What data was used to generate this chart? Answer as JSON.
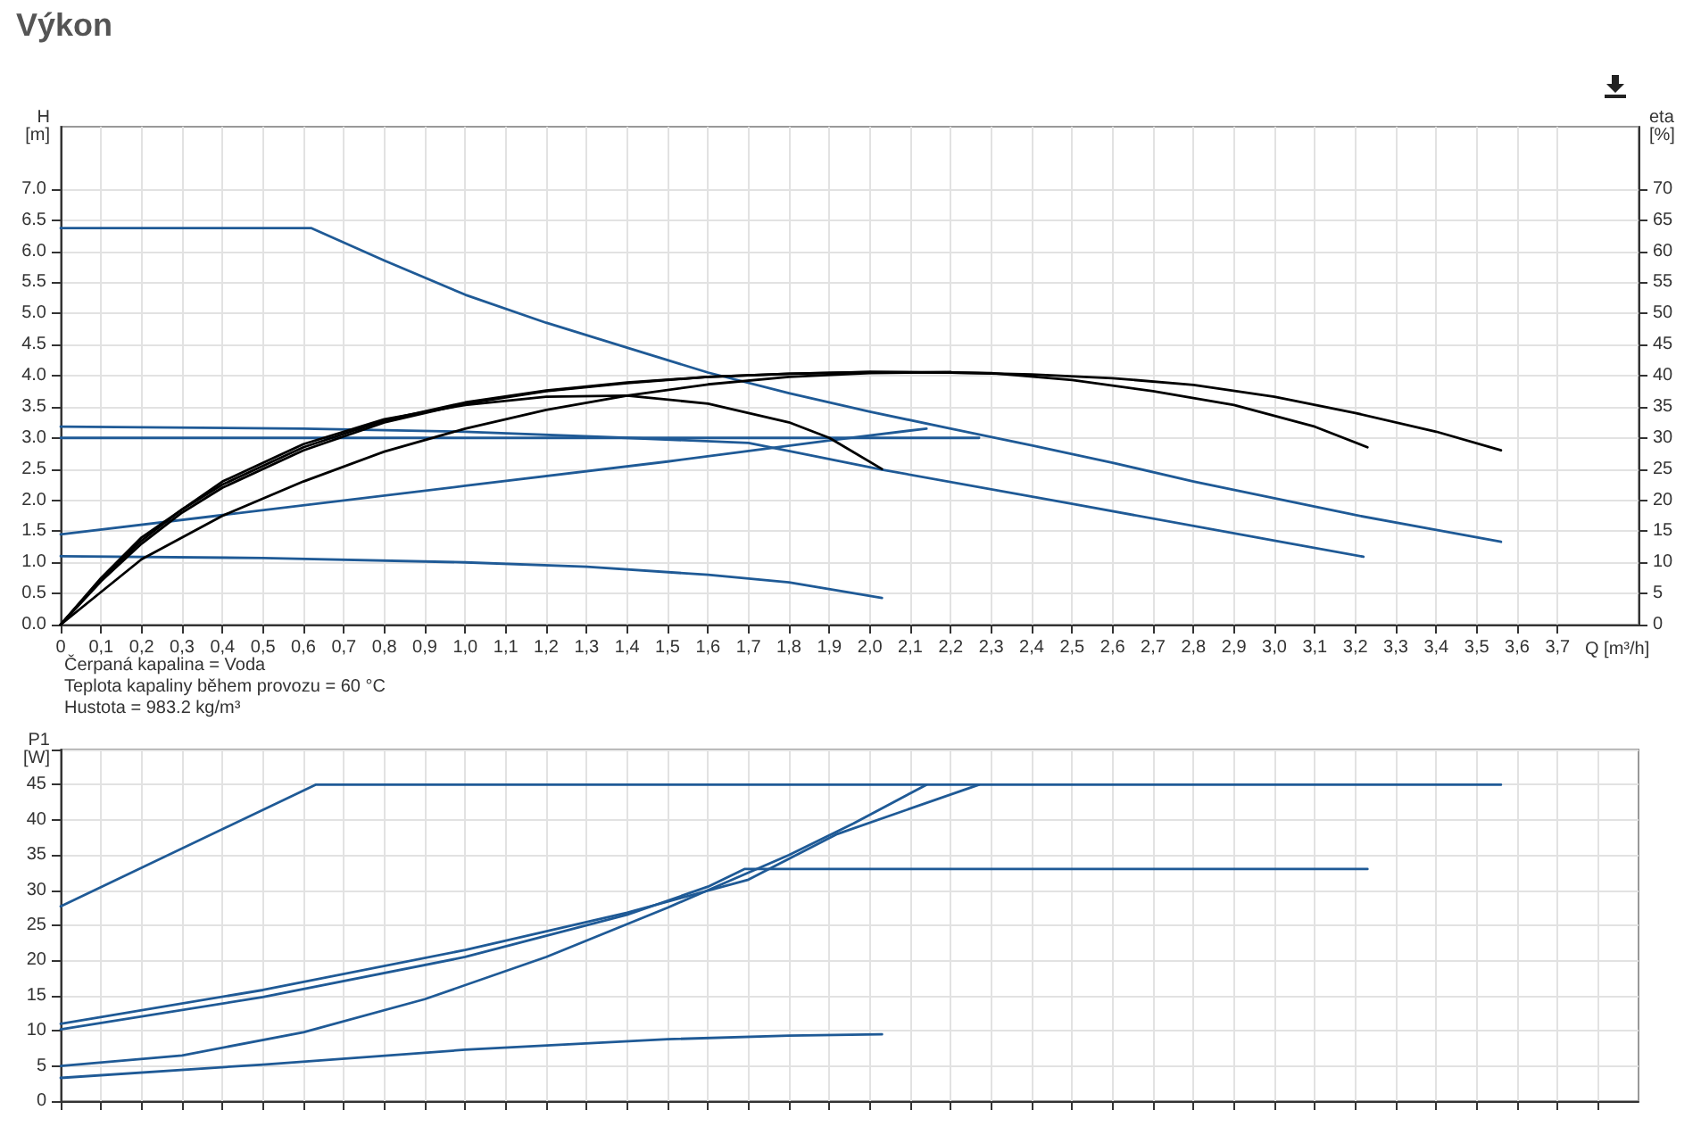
{
  "chart_data": [
    {
      "type": "line",
      "title": "Výkon",
      "xlabel": "Q [m³/h]",
      "ylabel": "H\n[m]",
      "y2label": "eta\n[%]",
      "grid": true,
      "xlim": [
        0,
        3.9
      ],
      "xticks": [
        0,
        {
          "value": 0.1,
          "label": "0,1"
        },
        {
          "value": 0.2,
          "label": "0,2"
        },
        {
          "value": 0.3,
          "label": "0,3"
        },
        {
          "value": 0.4,
          "label": "0,4"
        },
        {
          "value": 0.5,
          "label": "0,5"
        },
        {
          "value": 0.6,
          "label": "0,6"
        },
        {
          "value": 0.7,
          "label": "0,7"
        },
        {
          "value": 0.8,
          "label": "0,8"
        },
        {
          "value": 0.9,
          "label": "0,9"
        },
        {
          "value": 1.0,
          "label": "1,0"
        },
        {
          "value": 1.1,
          "label": "1,1"
        },
        {
          "value": 1.2,
          "label": "1,2"
        },
        {
          "value": 1.3,
          "label": "1,3"
        },
        {
          "value": 1.4,
          "label": "1,4"
        },
        {
          "value": 1.5,
          "label": "1,5"
        },
        {
          "value": 1.6,
          "label": "1,6"
        },
        {
          "value": 1.7,
          "label": "1,7"
        },
        {
          "value": 1.8,
          "label": "1,8"
        },
        {
          "value": 1.9,
          "label": "1,9"
        },
        {
          "value": 2.0,
          "label": "2,0"
        },
        {
          "value": 2.1,
          "label": "2,1"
        },
        {
          "value": 2.2,
          "label": "2,2"
        },
        {
          "value": 2.3,
          "label": "2,3"
        },
        {
          "value": 2.4,
          "label": "2,4"
        },
        {
          "value": 2.5,
          "label": "2,5"
        },
        {
          "value": 2.6,
          "label": "2,6"
        },
        {
          "value": 2.7,
          "label": "2,7"
        },
        {
          "value": 2.8,
          "label": "2,8"
        },
        {
          "value": 2.9,
          "label": "2,9"
        },
        {
          "value": 3.0,
          "label": "3,0"
        },
        {
          "value": 3.1,
          "label": "3,1"
        },
        {
          "value": 3.2,
          "label": "3,2"
        },
        {
          "value": 3.3,
          "label": "3,3"
        },
        {
          "value": 3.4,
          "label": "3,4"
        },
        {
          "value": 3.5,
          "label": "3,5"
        },
        {
          "value": 3.6,
          "label": "3,6"
        },
        {
          "value": 3.7,
          "label": "3,7"
        }
      ],
      "ylim": [
        0,
        8
      ],
      "yticks": [
        {
          "value": 0,
          "label": "0.0"
        },
        0.5,
        {
          "value": 1,
          "label": "1.0"
        },
        1.5,
        {
          "value": 2,
          "label": "2.0"
        },
        2.5,
        {
          "value": 3,
          "label": "3.0"
        },
        3.5,
        {
          "value": 4,
          "label": "4.0"
        },
        4.5,
        {
          "value": 5,
          "label": "5.0"
        },
        5.5,
        {
          "value": 6,
          "label": "6.0"
        },
        6.5,
        {
          "value": 7,
          "label": "7.0"
        }
      ],
      "y2lim": [
        0,
        80
      ],
      "y2ticks": [
        0,
        5,
        10,
        15,
        20,
        25,
        30,
        35,
        40,
        45,
        50,
        55,
        60,
        65,
        70
      ],
      "annotations": [
        "Čerpaná kapalina = Voda",
        "Teplota kapaliny během provozu = 60 °C",
        "Hustota = 983.2 kg/m³"
      ],
      "series": [
        {
          "color": "#1f5a96",
          "x": [
            0,
            0.62,
            0.8,
            1.0,
            1.2,
            1.4,
            1.6,
            1.8,
            2.0,
            2.2,
            2.4,
            2.6,
            2.8,
            3.0,
            3.2,
            3.4,
            3.56
          ],
          "values": [
            6.37,
            6.37,
            5.85,
            5.3,
            4.85,
            4.45,
            4.05,
            3.72,
            3.42,
            3.15,
            2.88,
            2.6,
            2.3,
            2.03,
            1.76,
            1.52,
            1.33
          ]
        },
        {
          "color": "#1f5a96",
          "x": [
            0,
            0.6,
            1.0,
            1.4,
            1.7,
            2.03,
            2.5,
            3.0,
            3.22
          ],
          "values": [
            3.18,
            3.15,
            3.1,
            3.0,
            2.92,
            2.49,
            1.94,
            1.35,
            1.09
          ]
        },
        {
          "color": "#1f5a96",
          "x": [
            0,
            2.27
          ],
          "values": [
            3.0,
            3.0
          ]
        },
        {
          "color": "#1f5a96",
          "x": [
            0,
            0.4,
            1.0,
            1.5,
            1.9,
            2.14
          ],
          "values": [
            1.45,
            1.76,
            2.23,
            2.62,
            2.96,
            3.15
          ]
        },
        {
          "color": "#1f5a96",
          "x": [
            0,
            0.5,
            1.0,
            1.3,
            1.6,
            1.8,
            2.03
          ],
          "values": [
            1.1,
            1.07,
            1.0,
            0.93,
            0.8,
            0.68,
            0.43
          ]
        },
        {
          "color": "#000000",
          "axis": "y2",
          "x": [
            0,
            0.1,
            0.2,
            0.3,
            0.4,
            0.6,
            0.8,
            1.0,
            1.2,
            1.4,
            1.6,
            1.8,
            2.0,
            2.2,
            2.4,
            2.6,
            2.8,
            3.0,
            3.2,
            3.4,
            3.56
          ],
          "values": [
            0,
            7,
            13,
            18,
            22,
            28,
            32.5,
            35.5,
            37.5,
            38.8,
            39.8,
            40.3,
            40.6,
            40.5,
            40.2,
            39.6,
            38.5,
            36.6,
            34,
            31,
            28
          ]
        },
        {
          "color": "#000000",
          "axis": "y2",
          "x": [
            0,
            0.1,
            0.2,
            0.3,
            0.4,
            0.6,
            0.8,
            1.0,
            1.2,
            1.4,
            1.6,
            1.8,
            2.0,
            2.2,
            2.3,
            2.5,
            2.7,
            2.9,
            3.1,
            3.23
          ],
          "values": [
            0,
            7.3,
            13.5,
            18.5,
            22.5,
            28.5,
            32.8,
            35.7,
            37.6,
            38.9,
            39.8,
            40.3,
            40.6,
            40.5,
            40.4,
            39.3,
            37.5,
            35.3,
            31.8,
            28.5
          ]
        },
        {
          "color": "#000000",
          "axis": "y2",
          "x": [
            0,
            0.1,
            0.2,
            0.4,
            0.6,
            0.8,
            1.0,
            1.2,
            1.4,
            1.6,
            1.8,
            1.9,
            2.03
          ],
          "values": [
            0,
            7.5,
            14,
            23,
            29,
            33,
            35.3,
            36.6,
            36.8,
            35.5,
            32.5,
            30,
            25
          ]
        },
        {
          "color": "#000000",
          "axis": "y2",
          "x": [
            0,
            0.2,
            0.4,
            0.6,
            0.8,
            1.0,
            1.2,
            1.4,
            1.6,
            1.8,
            2.0,
            2.2
          ],
          "values": [
            0,
            10.5,
            17.5,
            23,
            27.8,
            31.5,
            34.5,
            36.8,
            38.6,
            39.8,
            40.4,
            40.6
          ]
        }
      ]
    },
    {
      "type": "line",
      "ylabel": "P1\n[W]",
      "grid": true,
      "tick_labels": "y",
      "xlim": [
        0,
        3.9
      ],
      "xticks": [
        0,
        0.1,
        0.2,
        0.3,
        0.4,
        0.5,
        0.6,
        0.7,
        0.8,
        0.9,
        1.0,
        1.1,
        1.2,
        1.3,
        1.4,
        1.5,
        1.6,
        1.7,
        1.8,
        1.9,
        2.0,
        2.1,
        2.2,
        2.3,
        2.4,
        2.5,
        2.6,
        2.7,
        2.8,
        2.9,
        3.0,
        3.1,
        3.2,
        3.3,
        3.4,
        3.5,
        3.6,
        3.7,
        3.8
      ],
      "ylim": [
        0,
        50
      ],
      "yticks": [
        0,
        5,
        10,
        15,
        20,
        25,
        30,
        35,
        40,
        45,
        {
          "value": 50,
          "label": null
        }
      ],
      "series": [
        {
          "color": "#1f5a96",
          "x": [
            0,
            0.63,
            3.56
          ],
          "values": [
            27.7,
            45,
            45
          ]
        },
        {
          "color": "#1f5a96",
          "x": [
            0,
            0.5,
            1.0,
            1.4,
            1.7,
            1.92,
            2.27
          ],
          "values": [
            11,
            15.8,
            21.5,
            26.8,
            31.5,
            38,
            45
          ]
        },
        {
          "color": "#1f5a96",
          "x": [
            0,
            0.5,
            1.0,
            1.4,
            1.6,
            1.69,
            3.23
          ],
          "values": [
            10.2,
            14.8,
            20.5,
            26.5,
            30.5,
            33,
            33
          ]
        },
        {
          "color": "#1f5a96",
          "x": [
            0,
            0.3,
            0.6,
            0.9,
            1.2,
            1.5,
            1.8,
            1.96,
            2.14
          ],
          "values": [
            5,
            6.5,
            9.8,
            14.5,
            20.5,
            27.5,
            35,
            39.5,
            45
          ]
        },
        {
          "color": "#1f5a96",
          "x": [
            0,
            0.5,
            1.0,
            1.5,
            1.8,
            2.03
          ],
          "values": [
            3.3,
            5.2,
            7.3,
            8.8,
            9.3,
            9.5
          ]
        }
      ]
    }
  ]
}
